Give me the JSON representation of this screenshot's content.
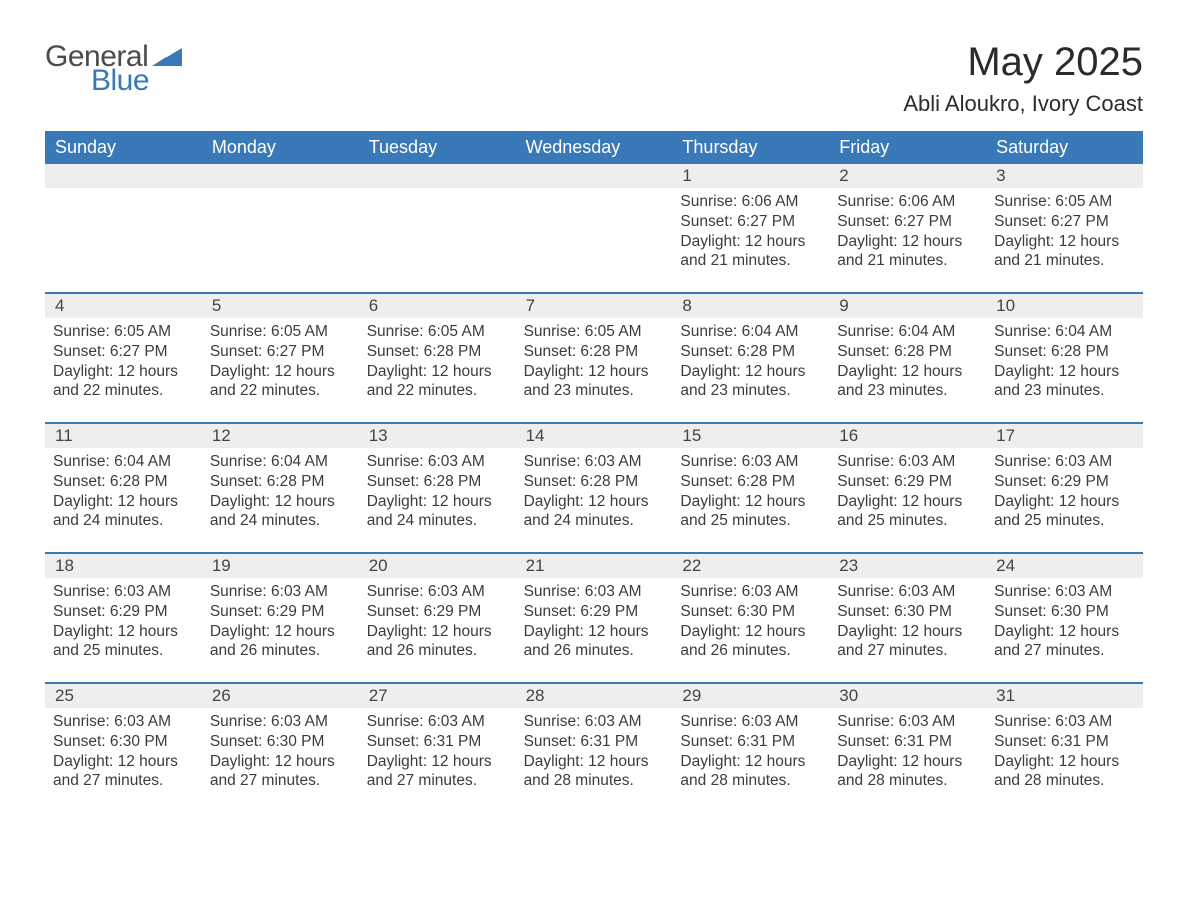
{
  "logo": {
    "word1": "General",
    "word2": "Blue",
    "accent_color": "#3a79b7",
    "text_color": "#4a4a4a"
  },
  "title": "May 2025",
  "location": "Abli Aloukro, Ivory Coast",
  "header_bg": "#3a79b7",
  "header_fg": "#ffffff",
  "row_divider_color": "#3a79b7",
  "date_bg": "#eeeeee",
  "background": "#ffffff",
  "text_color": "#3c3c3c",
  "day_names": [
    "Sunday",
    "Monday",
    "Tuesday",
    "Wednesday",
    "Thursday",
    "Friday",
    "Saturday"
  ],
  "weeks": [
    [
      {
        "date": "",
        "sunrise": "",
        "sunset": "",
        "daylight1": "",
        "daylight2": ""
      },
      {
        "date": "",
        "sunrise": "",
        "sunset": "",
        "daylight1": "",
        "daylight2": ""
      },
      {
        "date": "",
        "sunrise": "",
        "sunset": "",
        "daylight1": "",
        "daylight2": ""
      },
      {
        "date": "",
        "sunrise": "",
        "sunset": "",
        "daylight1": "",
        "daylight2": ""
      },
      {
        "date": "1",
        "sunrise": "Sunrise: 6:06 AM",
        "sunset": "Sunset: 6:27 PM",
        "daylight1": "Daylight: 12 hours",
        "daylight2": "and 21 minutes."
      },
      {
        "date": "2",
        "sunrise": "Sunrise: 6:06 AM",
        "sunset": "Sunset: 6:27 PM",
        "daylight1": "Daylight: 12 hours",
        "daylight2": "and 21 minutes."
      },
      {
        "date": "3",
        "sunrise": "Sunrise: 6:05 AM",
        "sunset": "Sunset: 6:27 PM",
        "daylight1": "Daylight: 12 hours",
        "daylight2": "and 21 minutes."
      }
    ],
    [
      {
        "date": "4",
        "sunrise": "Sunrise: 6:05 AM",
        "sunset": "Sunset: 6:27 PM",
        "daylight1": "Daylight: 12 hours",
        "daylight2": "and 22 minutes."
      },
      {
        "date": "5",
        "sunrise": "Sunrise: 6:05 AM",
        "sunset": "Sunset: 6:27 PM",
        "daylight1": "Daylight: 12 hours",
        "daylight2": "and 22 minutes."
      },
      {
        "date": "6",
        "sunrise": "Sunrise: 6:05 AM",
        "sunset": "Sunset: 6:28 PM",
        "daylight1": "Daylight: 12 hours",
        "daylight2": "and 22 minutes."
      },
      {
        "date": "7",
        "sunrise": "Sunrise: 6:05 AM",
        "sunset": "Sunset: 6:28 PM",
        "daylight1": "Daylight: 12 hours",
        "daylight2": "and 23 minutes."
      },
      {
        "date": "8",
        "sunrise": "Sunrise: 6:04 AM",
        "sunset": "Sunset: 6:28 PM",
        "daylight1": "Daylight: 12 hours",
        "daylight2": "and 23 minutes."
      },
      {
        "date": "9",
        "sunrise": "Sunrise: 6:04 AM",
        "sunset": "Sunset: 6:28 PM",
        "daylight1": "Daylight: 12 hours",
        "daylight2": "and 23 minutes."
      },
      {
        "date": "10",
        "sunrise": "Sunrise: 6:04 AM",
        "sunset": "Sunset: 6:28 PM",
        "daylight1": "Daylight: 12 hours",
        "daylight2": "and 23 minutes."
      }
    ],
    [
      {
        "date": "11",
        "sunrise": "Sunrise: 6:04 AM",
        "sunset": "Sunset: 6:28 PM",
        "daylight1": "Daylight: 12 hours",
        "daylight2": "and 24 minutes."
      },
      {
        "date": "12",
        "sunrise": "Sunrise: 6:04 AM",
        "sunset": "Sunset: 6:28 PM",
        "daylight1": "Daylight: 12 hours",
        "daylight2": "and 24 minutes."
      },
      {
        "date": "13",
        "sunrise": "Sunrise: 6:03 AM",
        "sunset": "Sunset: 6:28 PM",
        "daylight1": "Daylight: 12 hours",
        "daylight2": "and 24 minutes."
      },
      {
        "date": "14",
        "sunrise": "Sunrise: 6:03 AM",
        "sunset": "Sunset: 6:28 PM",
        "daylight1": "Daylight: 12 hours",
        "daylight2": "and 24 minutes."
      },
      {
        "date": "15",
        "sunrise": "Sunrise: 6:03 AM",
        "sunset": "Sunset: 6:28 PM",
        "daylight1": "Daylight: 12 hours",
        "daylight2": "and 25 minutes."
      },
      {
        "date": "16",
        "sunrise": "Sunrise: 6:03 AM",
        "sunset": "Sunset: 6:29 PM",
        "daylight1": "Daylight: 12 hours",
        "daylight2": "and 25 minutes."
      },
      {
        "date": "17",
        "sunrise": "Sunrise: 6:03 AM",
        "sunset": "Sunset: 6:29 PM",
        "daylight1": "Daylight: 12 hours",
        "daylight2": "and 25 minutes."
      }
    ],
    [
      {
        "date": "18",
        "sunrise": "Sunrise: 6:03 AM",
        "sunset": "Sunset: 6:29 PM",
        "daylight1": "Daylight: 12 hours",
        "daylight2": "and 25 minutes."
      },
      {
        "date": "19",
        "sunrise": "Sunrise: 6:03 AM",
        "sunset": "Sunset: 6:29 PM",
        "daylight1": "Daylight: 12 hours",
        "daylight2": "and 26 minutes."
      },
      {
        "date": "20",
        "sunrise": "Sunrise: 6:03 AM",
        "sunset": "Sunset: 6:29 PM",
        "daylight1": "Daylight: 12 hours",
        "daylight2": "and 26 minutes."
      },
      {
        "date": "21",
        "sunrise": "Sunrise: 6:03 AM",
        "sunset": "Sunset: 6:29 PM",
        "daylight1": "Daylight: 12 hours",
        "daylight2": "and 26 minutes."
      },
      {
        "date": "22",
        "sunrise": "Sunrise: 6:03 AM",
        "sunset": "Sunset: 6:30 PM",
        "daylight1": "Daylight: 12 hours",
        "daylight2": "and 26 minutes."
      },
      {
        "date": "23",
        "sunrise": "Sunrise: 6:03 AM",
        "sunset": "Sunset: 6:30 PM",
        "daylight1": "Daylight: 12 hours",
        "daylight2": "and 27 minutes."
      },
      {
        "date": "24",
        "sunrise": "Sunrise: 6:03 AM",
        "sunset": "Sunset: 6:30 PM",
        "daylight1": "Daylight: 12 hours",
        "daylight2": "and 27 minutes."
      }
    ],
    [
      {
        "date": "25",
        "sunrise": "Sunrise: 6:03 AM",
        "sunset": "Sunset: 6:30 PM",
        "daylight1": "Daylight: 12 hours",
        "daylight2": "and 27 minutes."
      },
      {
        "date": "26",
        "sunrise": "Sunrise: 6:03 AM",
        "sunset": "Sunset: 6:30 PM",
        "daylight1": "Daylight: 12 hours",
        "daylight2": "and 27 minutes."
      },
      {
        "date": "27",
        "sunrise": "Sunrise: 6:03 AM",
        "sunset": "Sunset: 6:31 PM",
        "daylight1": "Daylight: 12 hours",
        "daylight2": "and 27 minutes."
      },
      {
        "date": "28",
        "sunrise": "Sunrise: 6:03 AM",
        "sunset": "Sunset: 6:31 PM",
        "daylight1": "Daylight: 12 hours",
        "daylight2": "and 28 minutes."
      },
      {
        "date": "29",
        "sunrise": "Sunrise: 6:03 AM",
        "sunset": "Sunset: 6:31 PM",
        "daylight1": "Daylight: 12 hours",
        "daylight2": "and 28 minutes."
      },
      {
        "date": "30",
        "sunrise": "Sunrise: 6:03 AM",
        "sunset": "Sunset: 6:31 PM",
        "daylight1": "Daylight: 12 hours",
        "daylight2": "and 28 minutes."
      },
      {
        "date": "31",
        "sunrise": "Sunrise: 6:03 AM",
        "sunset": "Sunset: 6:31 PM",
        "daylight1": "Daylight: 12 hours",
        "daylight2": "and 28 minutes."
      }
    ]
  ]
}
